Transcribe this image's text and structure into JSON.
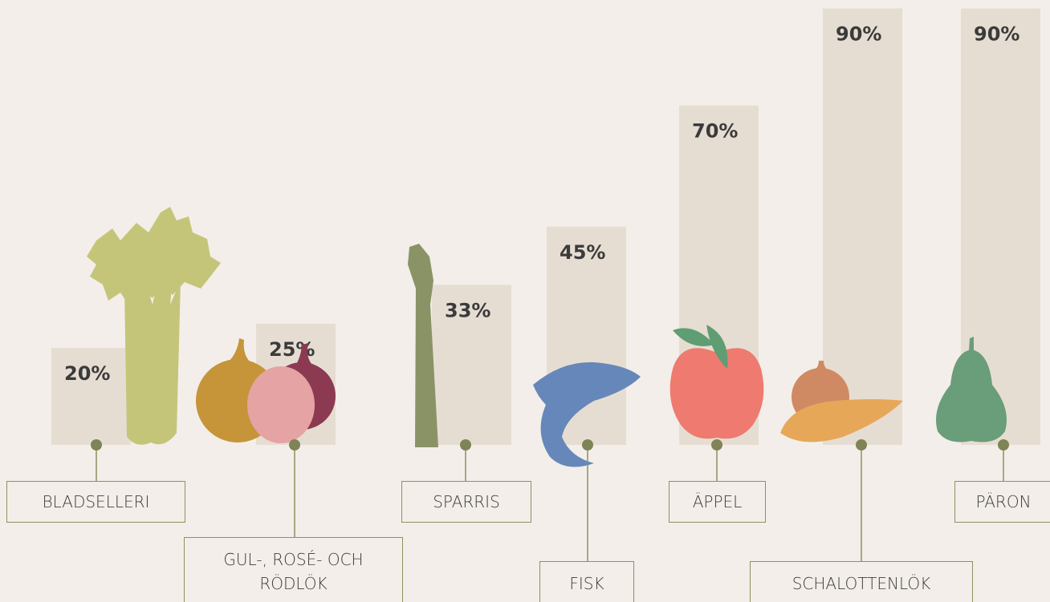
{
  "chart_data": {
    "type": "bar",
    "categories": [
      "BLADSELLERI",
      "GUL-, ROSÉ- OCH RÖDLÖK",
      "SPARRIS",
      "FISK",
      "ÄPPEL",
      "SCHALOTTENLÖK",
      "PÄRON"
    ],
    "values": [
      20,
      25,
      33,
      45,
      70,
      90,
      90
    ],
    "value_labels": [
      "20%",
      "25%",
      "33%",
      "45%",
      "70%",
      "90%",
      "90%"
    ],
    "color": "#e6ddd2"
  }
}
